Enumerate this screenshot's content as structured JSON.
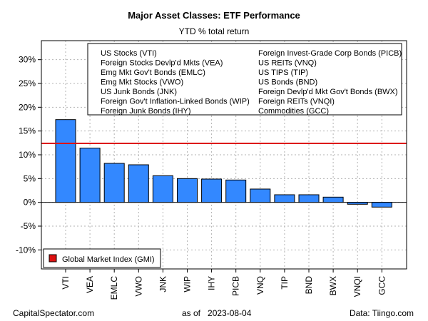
{
  "chart_data": {
    "type": "bar",
    "title": "Major Asset Classes: ETF Performance",
    "subtitle": "YTD % total return",
    "xlabel": "",
    "ylabel": "",
    "categories": [
      "VTI",
      "VEA",
      "EMLC",
      "VWO",
      "JNK",
      "WIP",
      "IHY",
      "PICB",
      "VNQ",
      "TIP",
      "BND",
      "BWX",
      "VNQI",
      "GCC"
    ],
    "values": [
      17.4,
      11.4,
      8.2,
      7.9,
      5.6,
      5.0,
      4.9,
      4.7,
      2.8,
      1.6,
      1.6,
      1.1,
      -0.4,
      -1.0
    ],
    "bar_color": "#3388ff",
    "ylim": [
      -14,
      34
    ],
    "yticks": [
      -10,
      -5,
      0,
      5,
      10,
      15,
      20,
      25,
      30
    ],
    "ytick_labels": [
      "-10%",
      "-5%",
      "0%",
      "5%",
      "10%",
      "15%",
      "20%",
      "25%",
      "30%"
    ],
    "reference_line": {
      "name": "Global Market Index (GMI)",
      "value": 12.4,
      "color": "#dd1111"
    },
    "legend_left": [
      "US Stocks (VTI)",
      "Foreign Stocks Devlp'd Mkts (VEA)",
      "Emg Mkt Gov't Bonds (EMLC)",
      "Emg Mkt Stocks (VWO)",
      "US Junk Bonds (JNK)",
      "Foreign Gov't Inflation-Linked Bonds (WIP)",
      "Foreign Junk Bonds (IHY)"
    ],
    "legend_right": [
      "Foreign Invest-Grade Corp Bonds (PICB)",
      "US REITs (VNQ)",
      "US TIPS (TIP)",
      "US Bonds (BND)",
      "Foreign Devlp'd Mkt Gov't Bonds (BWX)",
      "Foreign REITs (VNQI)",
      "Commodities (GCC)"
    ],
    "legend_position": "top-right",
    "grid": true
  },
  "footer": {
    "source_left": "CapitalSpectator.com",
    "date_text": "as of   2023-08-04",
    "source_right": "Data: Tiingo.com"
  }
}
